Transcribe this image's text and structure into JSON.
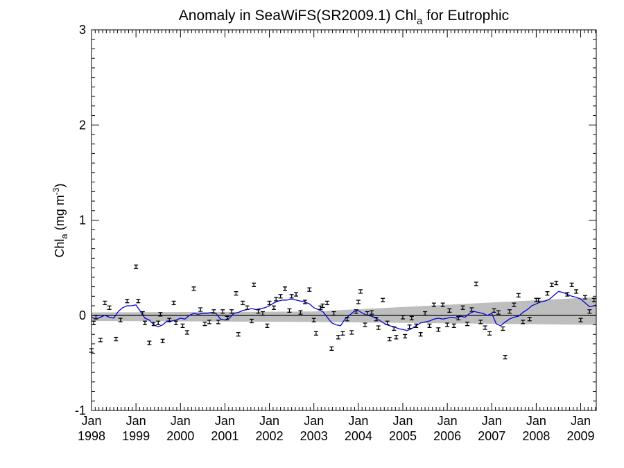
{
  "chart_data": {
    "type": "line",
    "title": {
      "main": "Anomaly in SeaWiFS(SR2009.1) Chl",
      "sub": "a",
      "tail": " for Eutrophic"
    },
    "ylabel": {
      "main": "Chl",
      "sub": "a",
      "unit": " (mg m",
      "sup": "-3",
      "close": ")"
    },
    "xlabel": "",
    "xlim": [
      1998.0,
      2009.35
    ],
    "ylim": [
      -1,
      3
    ],
    "y_ticks": [
      "-1",
      "0",
      "1",
      "2",
      "3"
    ],
    "x_ticks": [
      {
        "month": "Jan",
        "year": "1998",
        "x": 1998
      },
      {
        "month": "Jan",
        "year": "1999",
        "x": 1999
      },
      {
        "month": "Jan",
        "year": "2000",
        "x": 2000
      },
      {
        "month": "Jan",
        "year": "2001",
        "x": 2001
      },
      {
        "month": "Jan",
        "year": "2002",
        "x": 2002
      },
      {
        "month": "Jan",
        "year": "2003",
        "x": 2003
      },
      {
        "month": "Jan",
        "year": "2004",
        "x": 2004
      },
      {
        "month": "Jan",
        "year": "2005",
        "x": 2005
      },
      {
        "month": "Jan",
        "year": "2006",
        "x": 2006
      },
      {
        "month": "Jan",
        "year": "2007",
        "x": 2007
      },
      {
        "month": "Jan",
        "year": "2008",
        "x": 2008
      },
      {
        "month": "Jan",
        "year": "2009",
        "x": 2009
      }
    ],
    "zero_line": 0,
    "band": {
      "x": [
        1998.0,
        2003.0,
        2009.35
      ],
      "upper": [
        0.03,
        0.04,
        0.19
      ],
      "lower": [
        -0.06,
        -0.07,
        -0.1
      ]
    },
    "points": [
      {
        "x": 1998.0,
        "y": -0.37
      },
      {
        "x": 1998.05,
        "y": -0.08
      },
      {
        "x": 1998.1,
        "y": -0.02
      },
      {
        "x": 1998.2,
        "y": -0.26
      },
      {
        "x": 1998.3,
        "y": 0.13
      },
      {
        "x": 1998.4,
        "y": 0.08
      },
      {
        "x": 1998.55,
        "y": -0.25
      },
      {
        "x": 1998.65,
        "y": -0.05
      },
      {
        "x": 1998.8,
        "y": 0.15
      },
      {
        "x": 1999.0,
        "y": 0.51
      },
      {
        "x": 1999.05,
        "y": 0.15
      },
      {
        "x": 1999.15,
        "y": 0.02
      },
      {
        "x": 1999.2,
        "y": -0.08
      },
      {
        "x": 1999.3,
        "y": -0.29
      },
      {
        "x": 1999.4,
        "y": -0.09
      },
      {
        "x": 1999.5,
        "y": -0.08
      },
      {
        "x": 1999.55,
        "y": 0.01
      },
      {
        "x": 1999.6,
        "y": -0.27
      },
      {
        "x": 1999.75,
        "y": -0.05
      },
      {
        "x": 1999.85,
        "y": 0.13
      },
      {
        "x": 1999.9,
        "y": -0.08
      },
      {
        "x": 2000.05,
        "y": -0.11
      },
      {
        "x": 2000.15,
        "y": -0.18
      },
      {
        "x": 2000.3,
        "y": 0.28
      },
      {
        "x": 2000.45,
        "y": 0.06
      },
      {
        "x": 2000.55,
        "y": -0.09
      },
      {
        "x": 2000.65,
        "y": -0.07
      },
      {
        "x": 2000.75,
        "y": 0.04
      },
      {
        "x": 2000.85,
        "y": -0.07
      },
      {
        "x": 2000.95,
        "y": 0.04
      },
      {
        "x": 2001.05,
        "y": -0.03
      },
      {
        "x": 2001.15,
        "y": 0.04
      },
      {
        "x": 2001.25,
        "y": 0.23
      },
      {
        "x": 2001.3,
        "y": -0.2
      },
      {
        "x": 2001.4,
        "y": 0.13
      },
      {
        "x": 2001.5,
        "y": 0.08
      },
      {
        "x": 2001.6,
        "y": -0.06
      },
      {
        "x": 2001.65,
        "y": 0.32
      },
      {
        "x": 2001.75,
        "y": 0.04
      },
      {
        "x": 2001.85,
        "y": 0.02
      },
      {
        "x": 2001.95,
        "y": -0.11
      },
      {
        "x": 2002.0,
        "y": 0.13
      },
      {
        "x": 2002.1,
        "y": 0.08
      },
      {
        "x": 2002.15,
        "y": 0.17
      },
      {
        "x": 2002.25,
        "y": 0.2
      },
      {
        "x": 2002.35,
        "y": 0.28
      },
      {
        "x": 2002.45,
        "y": 0.05
      },
      {
        "x": 2002.5,
        "y": 0.2
      },
      {
        "x": 2002.6,
        "y": 0.22
      },
      {
        "x": 2002.7,
        "y": 0.03
      },
      {
        "x": 2002.8,
        "y": 0.14
      },
      {
        "x": 2002.9,
        "y": 0.27
      },
      {
        "x": 2003.0,
        "y": -0.05
      },
      {
        "x": 2003.05,
        "y": -0.19
      },
      {
        "x": 2003.15,
        "y": 0.08
      },
      {
        "x": 2003.2,
        "y": 0.1
      },
      {
        "x": 2003.3,
        "y": 0.13
      },
      {
        "x": 2003.4,
        "y": -0.35
      },
      {
        "x": 2003.45,
        "y": 0.02
      },
      {
        "x": 2003.55,
        "y": -0.23
      },
      {
        "x": 2003.65,
        "y": -0.19
      },
      {
        "x": 2003.75,
        "y": -0.04
      },
      {
        "x": 2003.85,
        "y": -0.18
      },
      {
        "x": 2003.95,
        "y": 0.04
      },
      {
        "x": 2004.0,
        "y": 0.14
      },
      {
        "x": 2004.05,
        "y": 0.25
      },
      {
        "x": 2004.15,
        "y": -0.1
      },
      {
        "x": 2004.2,
        "y": 0.02
      },
      {
        "x": 2004.3,
        "y": 0.03
      },
      {
        "x": 2004.4,
        "y": -0.04
      },
      {
        "x": 2004.45,
        "y": -0.13
      },
      {
        "x": 2004.55,
        "y": 0.16
      },
      {
        "x": 2004.65,
        "y": -0.08
      },
      {
        "x": 2004.7,
        "y": -0.25
      },
      {
        "x": 2004.8,
        "y": -0.14
      },
      {
        "x": 2004.85,
        "y": -0.23
      },
      {
        "x": 2005.0,
        "y": -0.02
      },
      {
        "x": 2005.05,
        "y": -0.22
      },
      {
        "x": 2005.15,
        "y": -0.12
      },
      {
        "x": 2005.2,
        "y": -0.03
      },
      {
        "x": 2005.3,
        "y": -0.11
      },
      {
        "x": 2005.4,
        "y": -0.2
      },
      {
        "x": 2005.5,
        "y": 0.02
      },
      {
        "x": 2005.6,
        "y": -0.11
      },
      {
        "x": 2005.7,
        "y": 0.11
      },
      {
        "x": 2005.8,
        "y": -0.15
      },
      {
        "x": 2005.9,
        "y": 0.11
      },
      {
        "x": 2006.0,
        "y": -0.1
      },
      {
        "x": 2006.05,
        "y": 0.05
      },
      {
        "x": 2006.15,
        "y": -0.11
      },
      {
        "x": 2006.25,
        "y": -0.03
      },
      {
        "x": 2006.35,
        "y": 0.08
      },
      {
        "x": 2006.45,
        "y": -0.09
      },
      {
        "x": 2006.55,
        "y": 0.06
      },
      {
        "x": 2006.65,
        "y": 0.33
      },
      {
        "x": 2006.75,
        "y": -0.07
      },
      {
        "x": 2006.85,
        "y": -0.13
      },
      {
        "x": 2006.95,
        "y": -0.19
      },
      {
        "x": 2007.05,
        "y": 0.05
      },
      {
        "x": 2007.15,
        "y": 0.03
      },
      {
        "x": 2007.25,
        "y": -0.14
      },
      {
        "x": 2007.3,
        "y": -0.44
      },
      {
        "x": 2007.4,
        "y": 0.04
      },
      {
        "x": 2007.5,
        "y": 0.11
      },
      {
        "x": 2007.6,
        "y": 0.21
      },
      {
        "x": 2007.7,
        "y": -0.07
      },
      {
        "x": 2007.85,
        "y": -0.04
      },
      {
        "x": 2008.0,
        "y": 0.16
      },
      {
        "x": 2008.05,
        "y": 0.16
      },
      {
        "x": 2008.25,
        "y": 0.23
      },
      {
        "x": 2008.35,
        "y": 0.32
      },
      {
        "x": 2008.45,
        "y": 0.34
      },
      {
        "x": 2008.7,
        "y": 0.22
      },
      {
        "x": 2008.8,
        "y": 0.32
      },
      {
        "x": 2008.9,
        "y": 0.25
      },
      {
        "x": 2009.0,
        "y": -0.05
      },
      {
        "x": 2009.1,
        "y": 0.19
      },
      {
        "x": 2009.2,
        "y": 0.04
      },
      {
        "x": 2009.3,
        "y": 0.16
      }
    ],
    "smooth_line": {
      "x": [
        1998.0,
        1998.1,
        1998.2,
        1998.3,
        1998.4,
        1998.5,
        1998.6,
        1998.7,
        1998.8,
        1998.9,
        1999.0,
        1999.1,
        1999.2,
        1999.3,
        1999.4,
        1999.5,
        1999.6,
        1999.7,
        1999.8,
        1999.9,
        2000.0,
        2000.1,
        2000.2,
        2000.3,
        2000.4,
        2000.5,
        2000.6,
        2000.7,
        2000.8,
        2000.9,
        2001.0,
        2001.1,
        2001.2,
        2001.3,
        2001.4,
        2001.5,
        2001.6,
        2001.7,
        2001.8,
        2001.9,
        2002.0,
        2002.1,
        2002.2,
        2002.3,
        2002.4,
        2002.5,
        2002.6,
        2002.7,
        2002.8,
        2002.9,
        2003.0,
        2003.1,
        2003.2,
        2003.3,
        2003.4,
        2003.5,
        2003.6,
        2003.7,
        2003.8,
        2003.9,
        2004.0,
        2004.1,
        2004.2,
        2004.3,
        2004.4,
        2004.5,
        2004.6,
        2004.7,
        2004.8,
        2004.9,
        2005.0,
        2005.1,
        2005.2,
        2005.3,
        2005.4,
        2005.5,
        2005.6,
        2005.7,
        2005.8,
        2005.9,
        2006.0,
        2006.1,
        2006.2,
        2006.3,
        2006.4,
        2006.5,
        2006.6,
        2006.7,
        2006.8,
        2006.9,
        2007.0,
        2007.1,
        2007.2,
        2007.3,
        2007.4,
        2007.5,
        2007.6,
        2007.7,
        2007.8,
        2007.9,
        2008.0,
        2008.1,
        2008.2,
        2008.3,
        2008.4,
        2008.5,
        2008.6,
        2008.7,
        2008.8,
        2008.9,
        2009.0,
        2009.1,
        2009.2,
        2009.3,
        2009.35
      ],
      "y": [
        -0.02,
        -0.04,
        -0.02,
        0.0,
        -0.02,
        -0.03,
        0.04,
        0.08,
        0.1,
        0.1,
        0.11,
        0.04,
        -0.03,
        -0.05,
        -0.1,
        -0.12,
        -0.1,
        -0.06,
        -0.06,
        -0.05,
        -0.03,
        -0.04,
        0.0,
        0.02,
        0.01,
        0.02,
        0.02,
        0.03,
        0.02,
        -0.04,
        -0.05,
        -0.03,
        0.02,
        0.03,
        0.05,
        0.06,
        0.07,
        0.06,
        0.07,
        0.08,
        0.1,
        0.13,
        0.15,
        0.16,
        0.16,
        0.17,
        0.16,
        0.15,
        0.14,
        0.12,
        0.08,
        0.06,
        0.04,
        -0.02,
        -0.08,
        -0.1,
        -0.11,
        -0.04,
        0.0,
        0.04,
        0.05,
        0.02,
        0.0,
        -0.01,
        -0.03,
        -0.06,
        -0.09,
        -0.11,
        -0.12,
        -0.14,
        -0.15,
        -0.16,
        -0.14,
        -0.11,
        -0.08,
        -0.07,
        -0.06,
        -0.04,
        -0.03,
        -0.04,
        -0.03,
        -0.02,
        -0.03,
        -0.01,
        -0.02,
        0.02,
        0.04,
        0.03,
        0.02,
        0.0,
        0.02,
        -0.09,
        -0.11,
        -0.07,
        -0.04,
        -0.02,
        -0.01,
        0.03,
        0.06,
        0.1,
        0.12,
        0.14,
        0.15,
        0.17,
        0.21,
        0.25,
        0.24,
        0.22,
        0.2,
        0.19,
        0.17,
        0.13,
        0.09,
        0.1,
        0.11
      ]
    },
    "colors": {
      "band": "#bebebe",
      "smooth_line": "#0000dd",
      "points": "#000000",
      "zero_line": "#000000",
      "axes": "#000000"
    }
  }
}
